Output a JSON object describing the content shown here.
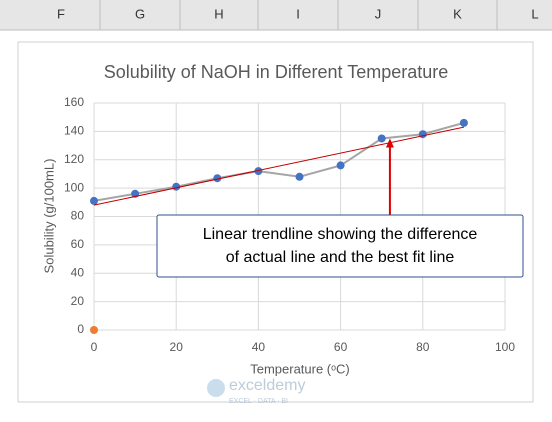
{
  "sheet": {
    "columns": [
      "F",
      "G",
      "H",
      "I",
      "J",
      "K",
      "L"
    ]
  },
  "chart_data": {
    "type": "scatter",
    "title": "Solubility of NaOH in Different Temperature",
    "xlabel": "Temperature (ᵒC)",
    "ylabel": "Solubility (g/100mL)",
    "series": [
      {
        "color": "#4472c4",
        "line_color": "#a5a5a5",
        "x": [
          0,
          10,
          20,
          30,
          40,
          50,
          60,
          70,
          80,
          90
        ],
        "values": [
          91,
          96,
          101,
          107,
          112,
          108,
          116,
          135,
          138,
          146
        ]
      },
      {
        "color": "#ed7d31",
        "x": [
          0
        ],
        "values": [
          0
        ]
      }
    ],
    "trendline": {
      "color": "#c00000",
      "x": [
        0,
        90
      ],
      "values": [
        88,
        143
      ]
    },
    "xlim": [
      0,
      100
    ],
    "xticks": [
      0,
      20,
      40,
      60,
      80,
      100
    ],
    "ylim": [
      0,
      160
    ],
    "yticks": [
      0,
      20,
      40,
      60,
      80,
      100,
      120,
      140,
      160
    ],
    "grid": true,
    "annotation": {
      "lines": [
        "Linear trendline showing the difference",
        "of actual line and the best fit line"
      ],
      "arrow_to": [
        72,
        135
      ]
    },
    "watermark": {
      "name": "exceldemy",
      "tagline": "EXCEL · DATA · BI"
    }
  }
}
